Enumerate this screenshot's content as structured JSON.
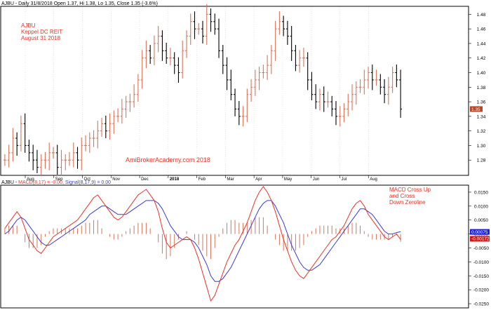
{
  "header": {
    "price_pane": "AJBU - Daily 31/8/2018 Open 1.37, Hi 1.38, Lo 1.35, Close 1.35 (-3.6%)",
    "macd_prefix": "AJBU - ",
    "macd_label": "MACD(8,17) = -0.00,",
    "signal_label": "Signal(8,17,9) = 0.00"
  },
  "annotations": {
    "ticker": "AJBU",
    "name": "Keppel DC REIT",
    "date": "August 31 2018",
    "watermark": "AmiBrokerAcademy.com  2018",
    "macd_note_1": "MACD Cross Up",
    "macd_note_2": "and Cross",
    "macd_note_3": "Down Zeroline"
  },
  "colors": {
    "up_bar": "#d9745a",
    "down_bar": "#000000",
    "macd_line": "#e8332a",
    "signal_line": "#3b3bd6",
    "histogram": "#d9745a",
    "annotation_text": "#e8332a",
    "last_price_tag": "#b5472b",
    "macd_tag": "#1a1aff",
    "signal_tag": "#dd1111"
  },
  "chart_data": [
    {
      "type": "ohlc",
      "name": "price",
      "ylim": [
        1.26,
        1.49
      ],
      "y_ticks": [
        "1.28",
        "1.30",
        "1.32",
        "1.34",
        "1.36",
        "1.38",
        "1.40",
        "1.42",
        "1.44",
        "1.46",
        "1.48"
      ],
      "x_month_labels": [
        "Aug",
        "Sep",
        "Oct",
        "Nov",
        "Dec",
        "2018",
        "Feb",
        "Mar",
        "Apr",
        "May",
        "Jun",
        "Jul",
        "Aug"
      ],
      "last_close_label": "1.35",
      "closes": [
        1.28,
        1.29,
        1.31,
        1.3,
        1.33,
        1.3,
        1.29,
        1.28,
        1.27,
        1.28,
        1.28,
        1.29,
        1.29,
        1.27,
        1.28,
        1.28,
        1.28,
        1.29,
        1.28,
        1.3,
        1.3,
        1.31,
        1.31,
        1.32,
        1.33,
        1.32,
        1.33,
        1.34,
        1.34,
        1.35,
        1.36,
        1.36,
        1.37,
        1.39,
        1.42,
        1.43,
        1.42,
        1.44,
        1.45,
        1.43,
        1.42,
        1.42,
        1.41,
        1.4,
        1.43,
        1.45,
        1.47,
        1.46,
        1.46,
        1.45,
        1.48,
        1.47,
        1.46,
        1.43,
        1.41,
        1.39,
        1.37,
        1.35,
        1.34,
        1.34,
        1.37,
        1.38,
        1.39,
        1.4,
        1.4,
        1.41,
        1.43,
        1.46,
        1.47,
        1.46,
        1.45,
        1.43,
        1.41,
        1.42,
        1.42,
        1.39,
        1.37,
        1.36,
        1.37,
        1.36,
        1.36,
        1.35,
        1.34,
        1.34,
        1.35,
        1.36,
        1.37,
        1.38,
        1.38,
        1.39,
        1.4,
        1.39,
        1.39,
        1.38,
        1.37,
        1.38,
        1.4,
        1.39,
        1.35
      ]
    },
    {
      "type": "line",
      "name": "MACD",
      "ylim": [
        -0.026,
        0.017
      ],
      "y_ticks": [
        "0.0150",
        "0.0100",
        "0.0050",
        "0.0000",
        "-0.0050",
        "-0.0100",
        "-0.0150",
        "-0.0200",
        "-0.0250"
      ],
      "series": [
        {
          "name": "MACD(8,17)",
          "values": [
            0.002,
            0.004,
            0.006,
            0.008,
            0.006,
            0.002,
            -0.002,
            -0.004,
            -0.006,
            -0.007,
            -0.005,
            -0.003,
            -0.001,
            0.0,
            0.001,
            0.002,
            0.003,
            0.004,
            0.005,
            0.007,
            0.009,
            0.011,
            0.013,
            0.014,
            0.012,
            0.01,
            0.008,
            0.006,
            0.005,
            0.006,
            0.008,
            0.01,
            0.012,
            0.014,
            0.015,
            0.016,
            0.014,
            0.012,
            0.008,
            0.002,
            -0.003,
            -0.005,
            -0.004,
            -0.003,
            -0.002,
            -0.001,
            -0.002,
            -0.005,
            -0.009,
            -0.014,
            -0.019,
            -0.024,
            -0.022,
            -0.018,
            -0.014,
            -0.01,
            -0.007,
            -0.004,
            -0.002,
            0.001,
            0.004,
            0.008,
            0.012,
            0.015,
            0.017,
            0.015,
            0.012,
            0.008,
            0.003,
            -0.002,
            -0.006,
            -0.01,
            -0.013,
            -0.015,
            -0.016,
            -0.014,
            -0.012,
            -0.01,
            -0.008,
            -0.006,
            -0.004,
            -0.002,
            -0.001,
            0.001,
            0.003,
            0.006,
            0.009,
            0.011,
            0.012,
            0.01,
            0.007,
            0.005,
            0.003,
            0.001,
            -0.001,
            -0.002,
            -0.001,
            0.0,
            -0.002
          ]
        },
        {
          "name": "Signal(8,17,9)",
          "values": [
            0.0,
            0.001,
            0.003,
            0.005,
            0.006,
            0.005,
            0.003,
            0.001,
            -0.001,
            -0.003,
            -0.004,
            -0.004,
            -0.003,
            -0.002,
            -0.001,
            0.0,
            0.001,
            0.002,
            0.003,
            0.004,
            0.005,
            0.007,
            0.008,
            0.009,
            0.01,
            0.01,
            0.009,
            0.008,
            0.007,
            0.007,
            0.007,
            0.008,
            0.009,
            0.01,
            0.011,
            0.012,
            0.012,
            0.012,
            0.011,
            0.009,
            0.006,
            0.003,
            0.001,
            -0.001,
            -0.002,
            -0.002,
            -0.002,
            -0.003,
            -0.005,
            -0.008,
            -0.011,
            -0.015,
            -0.017,
            -0.017,
            -0.016,
            -0.014,
            -0.012,
            -0.009,
            -0.006,
            -0.003,
            0.0,
            0.003,
            0.006,
            0.009,
            0.011,
            0.012,
            0.012,
            0.01,
            0.007,
            0.004,
            0.0,
            -0.004,
            -0.007,
            -0.01,
            -0.012,
            -0.013,
            -0.013,
            -0.012,
            -0.011,
            -0.009,
            -0.007,
            -0.005,
            -0.003,
            -0.001,
            0.001,
            0.003,
            0.005,
            0.007,
            0.009,
            0.009,
            0.008,
            0.007,
            0.005,
            0.003,
            0.001,
            0.0,
            0.0,
            0.0005,
            0.0008
          ]
        }
      ],
      "macd_tag_label": "0.00075",
      "signal_tag_label": "-0.00172"
    }
  ]
}
